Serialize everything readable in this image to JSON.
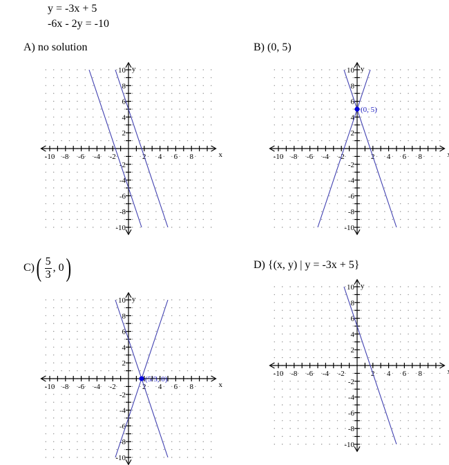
{
  "problem": {
    "equation1": "y = -3x + 5",
    "equation2": "-6x - 2y = -10"
  },
  "choices": [
    {
      "letter": "A)",
      "label": "no solution"
    },
    {
      "letter": "B)",
      "label": "(0, 5)"
    },
    {
      "letter": "C)",
      "fraction_num": "5",
      "fraction_den": "3",
      "after_fraction": ", 0"
    },
    {
      "letter": "D)",
      "label": "{(x, y) | y = -3x + 5}"
    }
  ],
  "chart_data": [
    {
      "type": "line",
      "title": "A) no solution",
      "xlabel": "x",
      "ylabel": "y",
      "xlim": [
        -10,
        10
      ],
      "ylim": [
        -10,
        10
      ],
      "x_ticks": [
        -10,
        -8,
        -6,
        -4,
        -2,
        2,
        4,
        6,
        8
      ],
      "y_ticks": [
        10,
        8,
        6,
        4,
        2,
        -2,
        -4,
        -6,
        -8,
        -10
      ],
      "grid": "dots",
      "series": [
        {
          "slope": -3,
          "intercept": 5,
          "x": [
            -1.67,
            5
          ],
          "y": [
            10,
            -10
          ]
        },
        {
          "slope": -3,
          "intercept": -5,
          "x": [
            -5,
            1.67
          ],
          "y": [
            10,
            -10
          ]
        }
      ],
      "points": []
    },
    {
      "type": "line",
      "title": "B) (0, 5)",
      "xlabel": "x",
      "ylabel": "y",
      "xlim": [
        -10,
        10
      ],
      "ylim": [
        -10,
        10
      ],
      "x_ticks": [
        -10,
        -8,
        -6,
        -4,
        -2,
        2,
        4,
        6,
        8
      ],
      "y_ticks": [
        10,
        8,
        6,
        4,
        2,
        -2,
        -4,
        -6,
        -8,
        -10
      ],
      "grid": "dots",
      "series": [
        {
          "slope": -3,
          "intercept": 5,
          "x": [
            -1.67,
            5
          ],
          "y": [
            10,
            -10
          ]
        },
        {
          "slope": 3,
          "intercept": 5,
          "x": [
            -5,
            1.67
          ],
          "y": [
            -10,
            10
          ]
        }
      ],
      "points": [
        {
          "x": 0,
          "y": 5,
          "label": "(0, 5)"
        }
      ]
    },
    {
      "type": "line",
      "title": "C) (5/3, 0)",
      "xlabel": "x",
      "ylabel": "y",
      "xlim": [
        -10,
        10
      ],
      "ylim": [
        -10,
        10
      ],
      "x_ticks": [
        -10,
        -8,
        -6,
        -4,
        -2,
        2,
        4,
        6,
        8
      ],
      "y_ticks": [
        10,
        8,
        6,
        4,
        2,
        -2,
        -4,
        -6,
        -8,
        -10
      ],
      "grid": "dots",
      "series": [
        {
          "slope": -3,
          "intercept": 5,
          "x": [
            -1.67,
            5
          ],
          "y": [
            10,
            -10
          ]
        },
        {
          "slope": 3,
          "intercept": -5,
          "x": [
            -1.67,
            5
          ],
          "y": [
            -10,
            10
          ]
        }
      ],
      "points": [
        {
          "x": 1.667,
          "y": 0,
          "label": "(5/3, 0)"
        }
      ]
    },
    {
      "type": "line",
      "title": "D) {(x, y) | y = -3x + 5}",
      "xlabel": "x",
      "ylabel": "y",
      "xlim": [
        -10,
        10
      ],
      "ylim": [
        -10,
        10
      ],
      "x_ticks": [
        -10,
        -8,
        -6,
        -4,
        -2,
        2,
        4,
        6,
        8
      ],
      "y_ticks": [
        10,
        8,
        6,
        4,
        2,
        -2,
        -4,
        -6,
        -8,
        -10
      ],
      "grid": "dots",
      "series": [
        {
          "slope": -3,
          "intercept": 5,
          "x": [
            -1.67,
            5
          ],
          "y": [
            10,
            -10
          ]
        }
      ],
      "points": []
    }
  ],
  "colors": {
    "line": "#4040b0",
    "point": "#0000e0",
    "point_label": "#2020c0",
    "grid_dot": "#888888",
    "axis": "#000000"
  }
}
